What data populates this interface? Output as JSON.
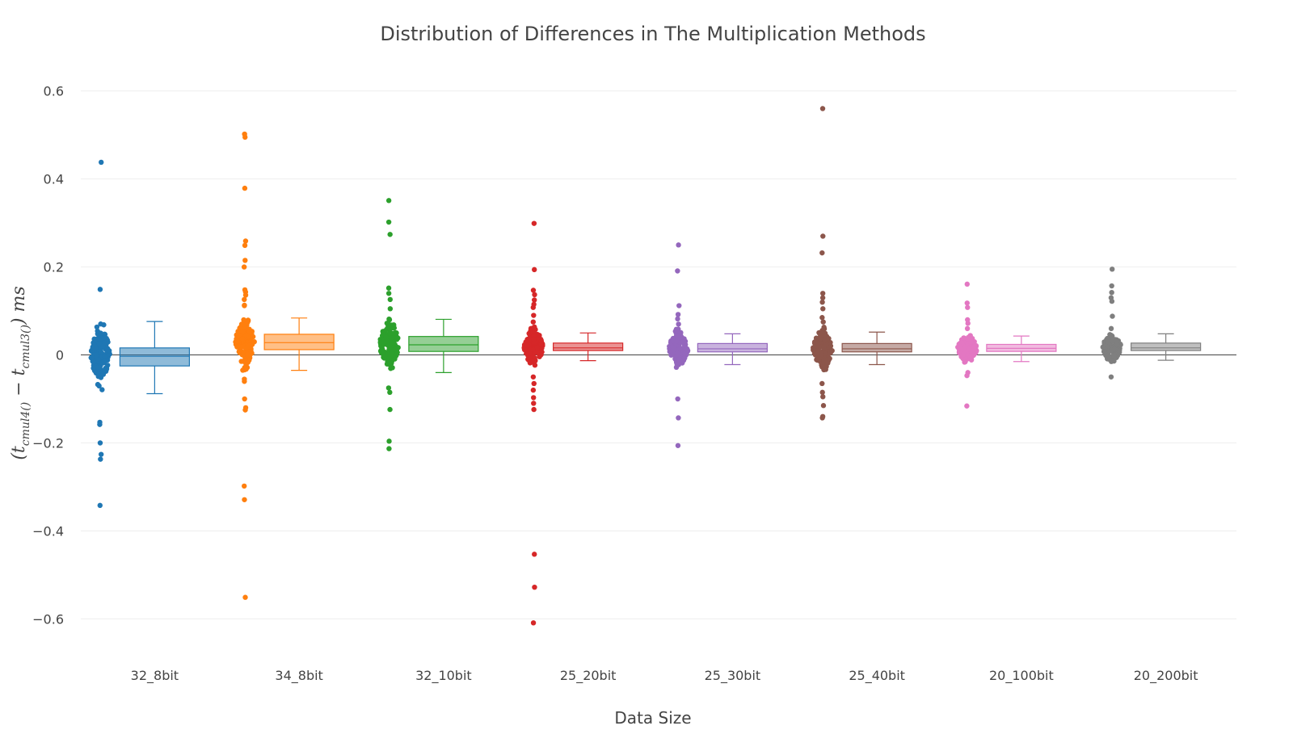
{
  "chart_data": {
    "type": "box",
    "title": "Distribution of Differences in The Multiplication Methods",
    "xlabel": "Data Size",
    "ylabel": {
      "open": "(",
      "t1": "t",
      "sub1": "cmul4()",
      "minus": " − ",
      "t2": "t",
      "sub2": "cmul3()",
      "close": ") ms"
    },
    "ylim": [
      -0.68,
      0.66
    ],
    "yticks": [
      -0.6,
      -0.4,
      -0.2,
      0,
      0.2,
      0.4,
      0.6
    ],
    "ytick_labels": [
      "−0.6",
      "−0.4",
      "−0.2",
      "0",
      "0.2",
      "0.4",
      "0.6"
    ],
    "grid": true,
    "zeroline": true,
    "categories": [
      "32_8bit",
      "34_8bit",
      "32_10bit",
      "25_20bit",
      "25_30bit",
      "25_40bit",
      "20_100bit",
      "20_200bit"
    ],
    "series": [
      {
        "category": "32_8bit",
        "color": "#1f77b4",
        "box": {
          "lowerfence": -0.088,
          "q1": -0.025,
          "median": -0.003,
          "q3": 0.016,
          "upperfence": 0.076
        },
        "outliers": [
          0.438,
          0.149,
          -0.153,
          -0.158,
          -0.2,
          -0.226,
          -0.237,
          -0.342
        ],
        "cluster": {
          "min": -0.1,
          "max": 0.095,
          "center": 0.0,
          "spread": 0.03,
          "count": 160
        }
      },
      {
        "category": "34_8bit",
        "color": "#ff7f0e",
        "box": {
          "lowerfence": -0.035,
          "q1": 0.012,
          "median": 0.028,
          "q3": 0.047,
          "upperfence": 0.084
        },
        "outliers": [
          0.502,
          0.495,
          0.379,
          0.259,
          0.249,
          0.215,
          0.2,
          0.148,
          0.143,
          0.136,
          0.126,
          0.113,
          0.112,
          -0.055,
          -0.06,
          -0.1,
          -0.12,
          -0.125,
          -0.298,
          -0.329,
          -0.551
        ],
        "cluster": {
          "min": -0.035,
          "max": 0.085,
          "center": 0.028,
          "spread": 0.025,
          "count": 150
        }
      },
      {
        "category": "32_10bit",
        "color": "#2ca02c",
        "box": {
          "lowerfence": -0.04,
          "q1": 0.008,
          "median": 0.023,
          "q3": 0.042,
          "upperfence": 0.081
        },
        "outliers": [
          0.351,
          0.302,
          0.274,
          0.152,
          0.14,
          0.126,
          0.105,
          -0.075,
          -0.085,
          -0.124,
          -0.196,
          -0.213
        ],
        "cluster": {
          "min": -0.06,
          "max": 0.085,
          "center": 0.023,
          "spread": 0.025,
          "count": 150
        }
      },
      {
        "category": "25_20bit",
        "color": "#d62728",
        "box": {
          "lowerfence": -0.013,
          "q1": 0.01,
          "median": 0.016,
          "q3": 0.027,
          "upperfence": 0.05
        },
        "outliers": [
          0.299,
          0.194,
          0.147,
          0.137,
          0.125,
          0.115,
          0.108,
          0.09,
          0.075,
          -0.05,
          -0.065,
          -0.08,
          -0.097,
          -0.11,
          -0.124,
          -0.453,
          -0.528,
          -0.609
        ],
        "cluster": {
          "min": -0.04,
          "max": 0.065,
          "center": 0.016,
          "spread": 0.02,
          "count": 150
        }
      },
      {
        "category": "25_30bit",
        "color": "#9467bd",
        "box": {
          "lowerfence": -0.022,
          "q1": 0.007,
          "median": 0.014,
          "q3": 0.026,
          "upperfence": 0.048
        },
        "outliers": [
          0.25,
          0.191,
          0.112,
          0.092,
          0.082,
          0.07,
          -0.1,
          -0.143,
          -0.206
        ],
        "cluster": {
          "min": -0.05,
          "max": 0.06,
          "center": 0.014,
          "spread": 0.018,
          "count": 130
        }
      },
      {
        "category": "25_40bit",
        "color": "#8c564b",
        "box": {
          "lowerfence": -0.022,
          "q1": 0.007,
          "median": 0.014,
          "q3": 0.026,
          "upperfence": 0.052
        },
        "outliers": [
          0.56,
          0.27,
          0.232,
          0.14,
          0.13,
          0.12,
          0.105,
          0.085,
          0.075,
          -0.065,
          -0.085,
          -0.095,
          -0.115,
          -0.14,
          -0.143
        ],
        "cluster": {
          "min": -0.06,
          "max": 0.065,
          "center": 0.014,
          "spread": 0.02,
          "count": 160
        }
      },
      {
        "category": "20_100bit",
        "color": "#e377c2",
        "box": {
          "lowerfence": -0.015,
          "q1": 0.008,
          "median": 0.015,
          "q3": 0.024,
          "upperfence": 0.043
        },
        "outliers": [
          0.161,
          0.118,
          0.108,
          0.08,
          0.072,
          0.06,
          -0.04,
          -0.047,
          -0.116
        ],
        "cluster": {
          "min": -0.03,
          "max": 0.05,
          "center": 0.015,
          "spread": 0.015,
          "count": 120
        }
      },
      {
        "category": "20_200bit",
        "color": "#7f7f7f",
        "box": {
          "lowerfence": -0.012,
          "q1": 0.01,
          "median": 0.016,
          "q3": 0.027,
          "upperfence": 0.048
        },
        "outliers": [
          0.195,
          0.157,
          0.142,
          0.13,
          0.122,
          0.088,
          0.06,
          -0.015,
          -0.05
        ],
        "cluster": {
          "min": -0.015,
          "max": 0.055,
          "center": 0.016,
          "spread": 0.014,
          "count": 120
        }
      }
    ]
  }
}
